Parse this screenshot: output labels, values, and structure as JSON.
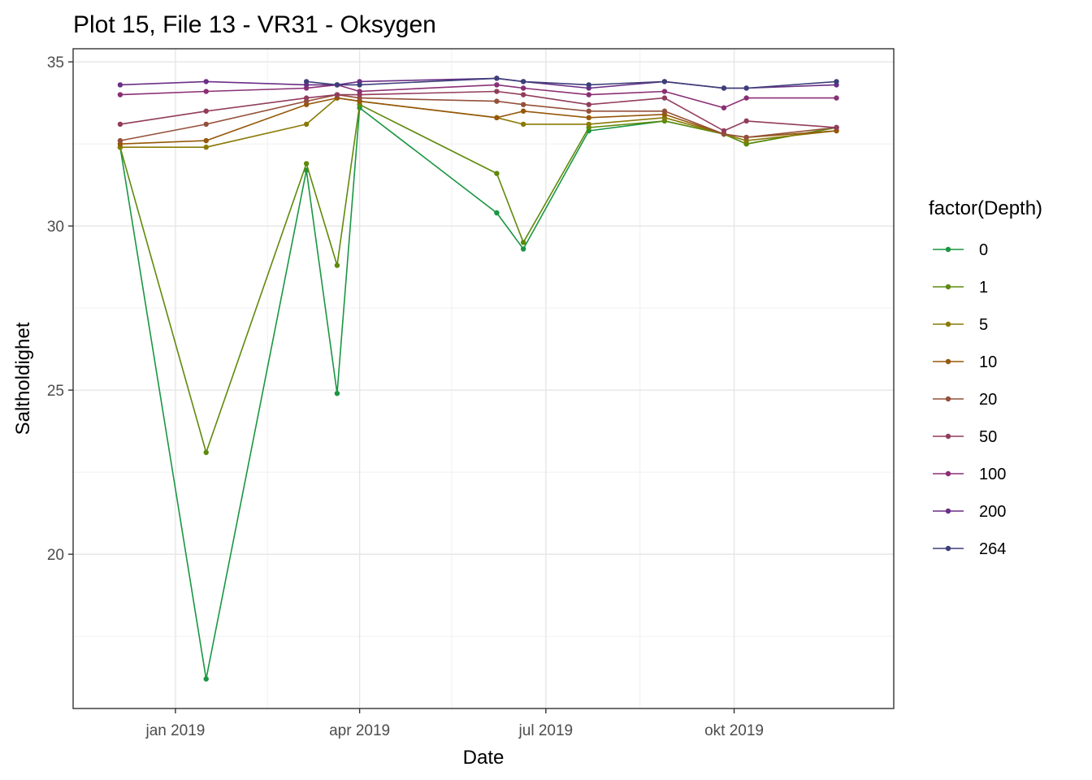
{
  "chart_data": {
    "type": "line",
    "title": "Plot 15, File 13 - VR31  -  Oksygen",
    "xlabel": "Date",
    "ylabel": "Saltholdighet",
    "x_ticks": [
      {
        "date": "2019-01-01",
        "label": "jan 2019"
      },
      {
        "date": "2019-04-01",
        "label": "apr 2019"
      },
      {
        "date": "2019-07-01",
        "label": "jul 2019"
      },
      {
        "date": "2019-10-01",
        "label": "okt 2019"
      }
    ],
    "x_minor_ticks": [
      "2019-02-15",
      "2019-05-16",
      "2019-08-16"
    ],
    "xlim": [
      "2018-11-12",
      "2019-12-18"
    ],
    "y_ticks": [
      20,
      25,
      30,
      35
    ],
    "y_minor_ticks": [
      17.5,
      22.5,
      27.5,
      32.5
    ],
    "ylim": [
      15.3,
      35.4
    ],
    "grid": true,
    "legend": {
      "title": "factor(Depth)",
      "position": "right"
    },
    "series": [
      {
        "name": "0",
        "color": "#1a9641",
        "points": [
          [
            "2018-12-05",
            32.4
          ],
          [
            "2019-01-16",
            16.2
          ],
          [
            "2019-03-06",
            31.7
          ],
          [
            "2019-03-21",
            24.9
          ],
          [
            "2019-04-01",
            33.6
          ],
          [
            "2019-06-07",
            30.4
          ],
          [
            "2019-06-20",
            29.3
          ],
          [
            "2019-07-22",
            32.9
          ],
          [
            "2019-08-28",
            33.2
          ],
          [
            "2019-09-26",
            32.8
          ],
          [
            "2019-10-07",
            32.5
          ],
          [
            "2019-11-20",
            33.0
          ]
        ]
      },
      {
        "name": "1",
        "color": "#5e8a0a",
        "points": [
          [
            "2018-12-05",
            32.4
          ],
          [
            "2019-01-16",
            23.1
          ],
          [
            "2019-03-06",
            31.9
          ],
          [
            "2019-03-21",
            28.8
          ],
          [
            "2019-04-01",
            33.7
          ],
          [
            "2019-06-07",
            31.6
          ],
          [
            "2019-06-20",
            29.5
          ],
          [
            "2019-07-22",
            33.0
          ],
          [
            "2019-08-28",
            33.2
          ],
          [
            "2019-09-26",
            32.8
          ],
          [
            "2019-10-07",
            32.5
          ],
          [
            "2019-11-20",
            33.0
          ]
        ]
      },
      {
        "name": "5",
        "color": "#8a7a06",
        "points": [
          [
            "2018-12-05",
            32.4
          ],
          [
            "2019-01-16",
            32.4
          ],
          [
            "2019-03-06",
            33.1
          ],
          [
            "2019-03-21",
            33.9
          ],
          [
            "2019-04-01",
            33.8
          ],
          [
            "2019-06-07",
            33.3
          ],
          [
            "2019-06-20",
            33.1
          ],
          [
            "2019-07-22",
            33.1
          ],
          [
            "2019-08-28",
            33.3
          ],
          [
            "2019-09-26",
            32.8
          ],
          [
            "2019-10-07",
            32.6
          ],
          [
            "2019-11-20",
            32.9
          ]
        ]
      },
      {
        "name": "10",
        "color": "#96580a",
        "points": [
          [
            "2018-12-05",
            32.5
          ],
          [
            "2019-01-16",
            32.6
          ],
          [
            "2019-03-06",
            33.7
          ],
          [
            "2019-03-21",
            33.9
          ],
          [
            "2019-04-01",
            33.8
          ],
          [
            "2019-06-07",
            33.3
          ],
          [
            "2019-06-20",
            33.5
          ],
          [
            "2019-07-22",
            33.3
          ],
          [
            "2019-08-28",
            33.4
          ],
          [
            "2019-09-26",
            32.8
          ],
          [
            "2019-10-07",
            32.7
          ],
          [
            "2019-11-20",
            32.9
          ]
        ]
      },
      {
        "name": "20",
        "color": "#94503a",
        "points": [
          [
            "2018-12-05",
            32.6
          ],
          [
            "2019-01-16",
            33.1
          ],
          [
            "2019-03-06",
            33.8
          ],
          [
            "2019-03-21",
            34.0
          ],
          [
            "2019-04-01",
            33.9
          ],
          [
            "2019-06-07",
            33.8
          ],
          [
            "2019-06-20",
            33.7
          ],
          [
            "2019-07-22",
            33.5
          ],
          [
            "2019-08-28",
            33.5
          ],
          [
            "2019-09-26",
            32.8
          ],
          [
            "2019-10-07",
            32.7
          ],
          [
            "2019-11-20",
            33.0
          ]
        ]
      },
      {
        "name": "50",
        "color": "#923c5c",
        "points": [
          [
            "2018-12-05",
            33.1
          ],
          [
            "2019-01-16",
            33.5
          ],
          [
            "2019-03-06",
            33.9
          ],
          [
            "2019-03-21",
            34.0
          ],
          [
            "2019-04-01",
            34.0
          ],
          [
            "2019-06-07",
            34.1
          ],
          [
            "2019-06-20",
            34.0
          ],
          [
            "2019-07-22",
            33.7
          ],
          [
            "2019-08-28",
            33.9
          ],
          [
            "2019-09-26",
            32.9
          ],
          [
            "2019-10-07",
            33.2
          ],
          [
            "2019-11-20",
            33.0
          ]
        ]
      },
      {
        "name": "100",
        "color": "#8a2f74",
        "points": [
          [
            "2018-12-05",
            34.0
          ],
          [
            "2019-01-16",
            34.1
          ],
          [
            "2019-03-06",
            34.2
          ],
          [
            "2019-03-21",
            34.3
          ],
          [
            "2019-04-01",
            34.1
          ],
          [
            "2019-06-07",
            34.3
          ],
          [
            "2019-06-20",
            34.2
          ],
          [
            "2019-07-22",
            34.0
          ],
          [
            "2019-08-28",
            34.1
          ],
          [
            "2019-09-26",
            33.6
          ],
          [
            "2019-10-07",
            33.9
          ],
          [
            "2019-11-20",
            33.9
          ]
        ]
      },
      {
        "name": "200",
        "color": "#6a2f86",
        "points": [
          [
            "2018-12-05",
            34.3
          ],
          [
            "2019-01-16",
            34.4
          ],
          [
            "2019-03-06",
            34.3
          ],
          [
            "2019-03-21",
            34.3
          ],
          [
            "2019-04-01",
            34.4
          ],
          [
            "2019-06-07",
            34.5
          ],
          [
            "2019-06-20",
            34.4
          ],
          [
            "2019-07-22",
            34.2
          ],
          [
            "2019-08-28",
            34.4
          ],
          [
            "2019-09-26",
            34.2
          ],
          [
            "2019-10-07",
            34.2
          ],
          [
            "2019-11-20",
            34.3
          ]
        ]
      },
      {
        "name": "264",
        "color": "#3d3f7a",
        "points": [
          [
            "2019-03-06",
            34.4
          ],
          [
            "2019-03-21",
            34.3
          ],
          [
            "2019-04-01",
            34.3
          ],
          [
            "2019-06-07",
            34.5
          ],
          [
            "2019-06-20",
            34.4
          ],
          [
            "2019-07-22",
            34.3
          ],
          [
            "2019-08-28",
            34.4
          ],
          [
            "2019-09-26",
            34.2
          ],
          [
            "2019-10-07",
            34.2
          ],
          [
            "2019-11-20",
            34.4
          ]
        ]
      }
    ]
  }
}
